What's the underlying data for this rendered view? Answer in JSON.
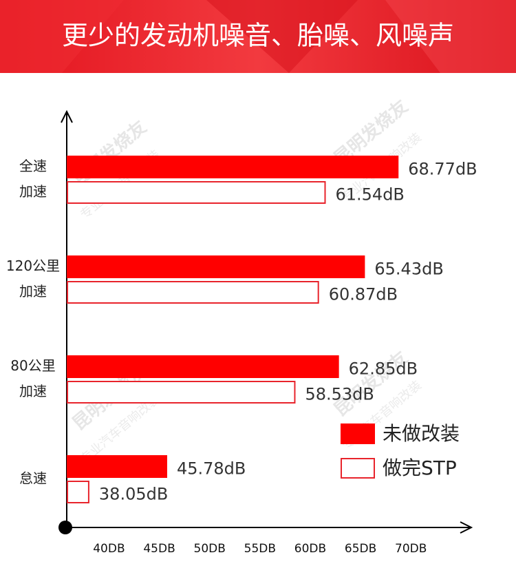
{
  "chart_data": {
    "type": "barh",
    "title": "更少的发动机噪音、胎噪、风噪声",
    "watermark": {
      "brand": "昆明发烧友",
      "slogan": "专业汽车音响改装"
    },
    "categories": [
      [
        "全速",
        "加速"
      ],
      [
        "120公里",
        "加速"
      ],
      [
        "80公里",
        "加速"
      ],
      [
        "怠速"
      ]
    ],
    "series": [
      {
        "name": "未做改装",
        "color": "#ff0000",
        "fill": true,
        "values": [
          68.77,
          65.43,
          62.85,
          45.78
        ],
        "value_labels": [
          "68.77dB",
          "65.43dB",
          "62.85dB",
          "45.78dB"
        ]
      },
      {
        "name": "做完STP",
        "color": "#e8232b",
        "fill": false,
        "values": [
          61.54,
          60.87,
          58.53,
          38.05
        ],
        "value_labels": [
          "61.54dB",
          "60.87dB",
          "58.53dB",
          "38.05dB"
        ]
      }
    ],
    "xlim": [
      35.8,
      76
    ],
    "xticks": [
      {
        "value": 40,
        "label": "40DB"
      },
      {
        "value": 45,
        "label": "45DB"
      },
      {
        "value": 50,
        "label": "50DB"
      },
      {
        "value": 55,
        "label": "55DB"
      },
      {
        "value": 60,
        "label": "60DB"
      },
      {
        "value": 65,
        "label": "65DB"
      },
      {
        "value": 70,
        "label": "70DB"
      }
    ],
    "legend": "bottom-right"
  }
}
